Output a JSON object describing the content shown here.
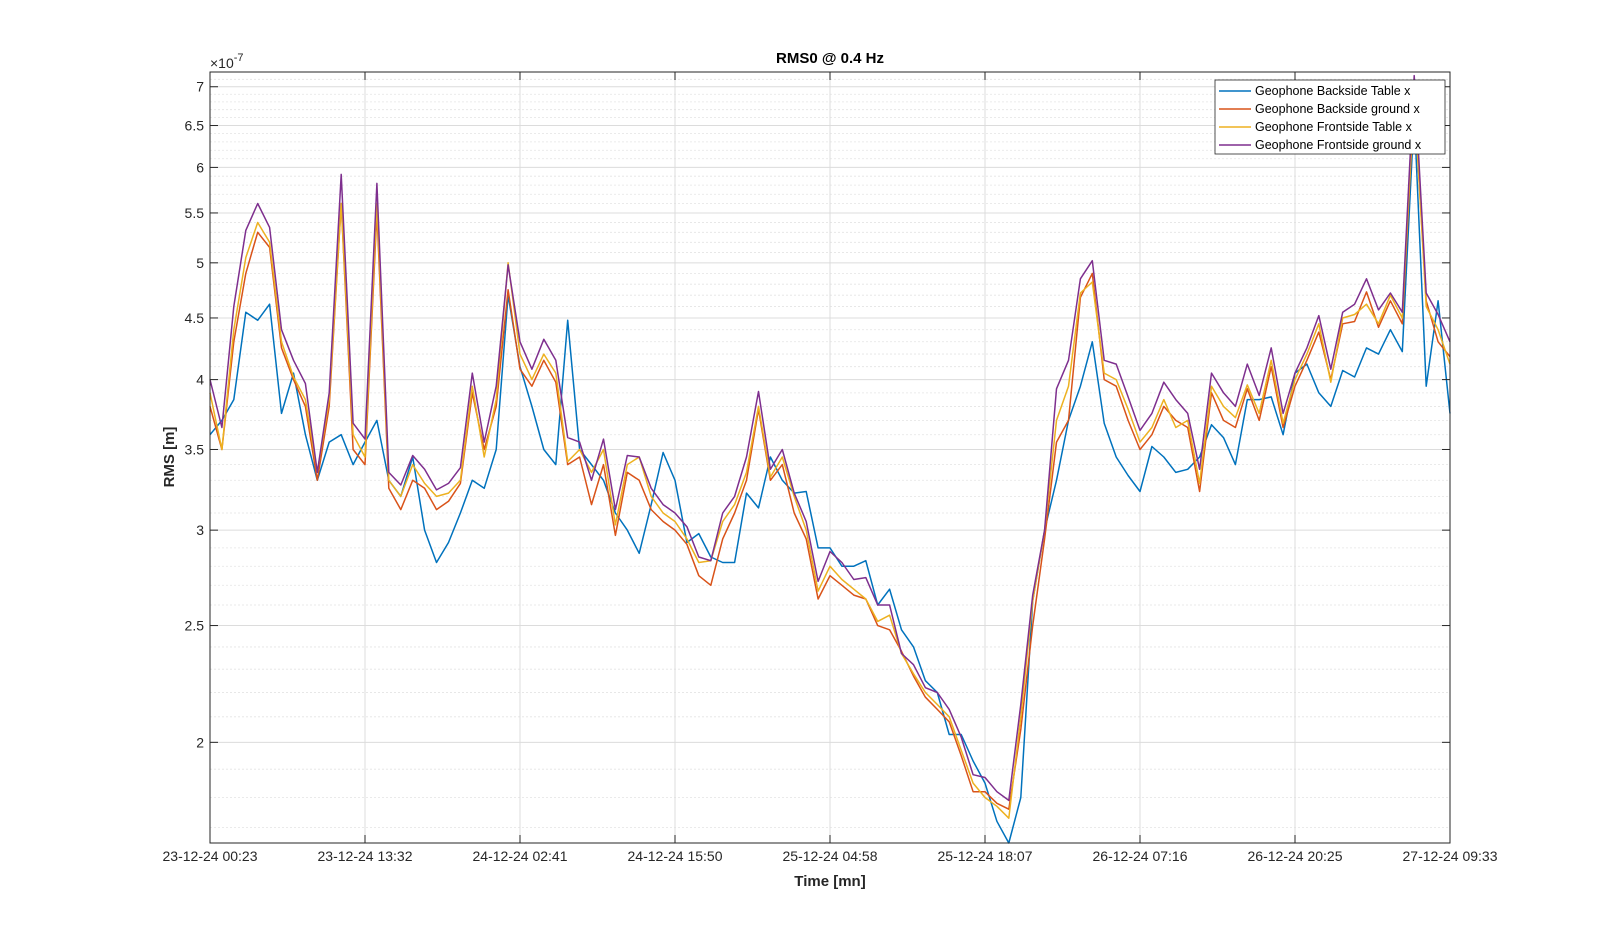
{
  "chart_data": {
    "type": "line",
    "title": "RMS0 @ 0.4 Hz",
    "xlabel": "Time [mn]",
    "ylabel": "RMS [m]",
    "y_scale": "log",
    "y_exponent_label": "×10",
    "y_exponent_power": "-7",
    "ylim": [
      1.65,
      7.2
    ],
    "y_ticks": [
      2,
      2.5,
      3,
      3.5,
      4,
      4.5,
      5,
      5.5,
      6,
      6.5,
      7
    ],
    "y_tick_labels": [
      "2",
      "2.5",
      "3",
      "3.5",
      "4",
      "4.5",
      "5",
      "5.5",
      "6",
      "6.5",
      "7"
    ],
    "x_tick_labels": [
      "23-12-24 00:23",
      "23-12-24 13:32",
      "24-12-24 02:41",
      "24-12-24 15:50",
      "25-12-24 04:58",
      "25-12-24 18:07",
      "26-12-24 07:16",
      "26-12-24 20:25",
      "27-12-24 09:33"
    ],
    "grid": true,
    "minor_grid": true,
    "legend_position": "top-right",
    "series": [
      {
        "name": "Geophone Backside Table x",
        "color": "#0072BD",
        "values": [
          3.6,
          3.7,
          3.85,
          4.55,
          4.48,
          4.62,
          3.75,
          4.05,
          3.6,
          3.3,
          3.55,
          3.6,
          3.4,
          3.55,
          3.7,
          3.3,
          3.2,
          3.45,
          3.0,
          2.82,
          2.93,
          3.1,
          3.3,
          3.25,
          3.5,
          4.7,
          4.1,
          3.8,
          3.5,
          3.4,
          4.48,
          3.5,
          3.4,
          3.3,
          3.1,
          3.0,
          2.87,
          3.15,
          3.48,
          3.3,
          2.93,
          2.98,
          2.85,
          2.82,
          2.82,
          3.22,
          3.13,
          3.45,
          3.3,
          3.22,
          3.23,
          2.9,
          2.9,
          2.8,
          2.8,
          2.83,
          2.6,
          2.68,
          2.48,
          2.4,
          2.25,
          2.2,
          2.03,
          2.03,
          1.93,
          1.85,
          1.72,
          1.65,
          1.8,
          2.62,
          3.0,
          3.3,
          3.7,
          3.95,
          4.3,
          3.68,
          3.45,
          3.33,
          3.23,
          3.52,
          3.45,
          3.35,
          3.37,
          3.45,
          3.67,
          3.58,
          3.4,
          3.85,
          3.85,
          3.87,
          3.6,
          4.05,
          4.12,
          3.9,
          3.8,
          4.07,
          4.02,
          4.25,
          4.2,
          4.4,
          4.22,
          6.65,
          3.95,
          4.65,
          3.75
        ]
      },
      {
        "name": "Geophone Backside ground x",
        "color": "#D95319",
        "values": [
          3.8,
          3.5,
          4.3,
          4.9,
          5.3,
          5.15,
          4.25,
          4.0,
          3.8,
          3.3,
          3.8,
          5.6,
          3.5,
          3.4,
          5.5,
          3.25,
          3.12,
          3.3,
          3.25,
          3.12,
          3.17,
          3.28,
          3.9,
          3.5,
          3.8,
          4.75,
          4.08,
          3.95,
          4.15,
          3.98,
          3.4,
          3.45,
          3.15,
          3.4,
          2.97,
          3.35,
          3.3,
          3.12,
          3.05,
          3.0,
          2.92,
          2.75,
          2.7,
          2.95,
          3.1,
          3.3,
          3.78,
          3.3,
          3.4,
          3.1,
          2.95,
          2.63,
          2.75,
          2.7,
          2.65,
          2.63,
          2.5,
          2.48,
          2.38,
          2.27,
          2.18,
          2.13,
          2.08,
          1.95,
          1.82,
          1.82,
          1.78,
          1.76,
          2.05,
          2.5,
          2.95,
          3.55,
          3.7,
          4.68,
          4.9,
          4.0,
          3.95,
          3.7,
          3.5,
          3.6,
          3.8,
          3.7,
          3.65,
          3.23,
          3.9,
          3.7,
          3.65,
          3.93,
          3.7,
          4.1,
          3.65,
          3.95,
          4.15,
          4.38,
          4.0,
          4.45,
          4.47,
          4.73,
          4.42,
          4.65,
          4.45,
          6.85,
          4.65,
          4.3,
          4.18
        ]
      },
      {
        "name": "Geophone Frontside Table x",
        "color": "#EDB120",
        "values": [
          3.9,
          3.5,
          4.4,
          5.05,
          5.4,
          5.2,
          4.3,
          4.02,
          3.85,
          3.35,
          3.85,
          5.6,
          3.6,
          3.45,
          5.6,
          3.3,
          3.2,
          3.4,
          3.28,
          3.2,
          3.22,
          3.3,
          3.95,
          3.45,
          3.85,
          5.0,
          4.2,
          4.0,
          4.2,
          4.05,
          3.42,
          3.5,
          3.35,
          3.5,
          3.03,
          3.4,
          3.45,
          3.2,
          3.1,
          3.05,
          2.95,
          2.82,
          2.83,
          3.05,
          3.15,
          3.35,
          3.8,
          3.32,
          3.45,
          3.2,
          3.0,
          2.67,
          2.8,
          2.73,
          2.68,
          2.63,
          2.52,
          2.55,
          2.37,
          2.28,
          2.2,
          2.15,
          2.1,
          1.97,
          1.85,
          1.8,
          1.77,
          1.73,
          2.1,
          2.62,
          3.0,
          3.7,
          3.95,
          4.72,
          4.82,
          4.05,
          4.0,
          3.78,
          3.55,
          3.65,
          3.85,
          3.65,
          3.7,
          3.28,
          3.95,
          3.8,
          3.72,
          3.96,
          3.75,
          4.15,
          3.68,
          4.0,
          4.2,
          4.45,
          3.98,
          4.5,
          4.53,
          4.62,
          4.45,
          4.7,
          4.5,
          6.9,
          4.6,
          4.4,
          4.12
        ]
      },
      {
        "name": "Geophone Frontside ground x",
        "color": "#7E2F8E",
        "values": [
          4.0,
          3.65,
          4.6,
          5.32,
          5.6,
          5.35,
          4.4,
          4.15,
          3.97,
          3.35,
          3.9,
          5.92,
          3.68,
          3.57,
          5.82,
          3.35,
          3.27,
          3.46,
          3.37,
          3.24,
          3.28,
          3.38,
          4.05,
          3.55,
          3.95,
          4.98,
          4.3,
          4.08,
          4.32,
          4.15,
          3.58,
          3.55,
          3.3,
          3.57,
          3.12,
          3.46,
          3.45,
          3.25,
          3.15,
          3.1,
          3.02,
          2.85,
          2.83,
          3.1,
          3.2,
          3.45,
          3.91,
          3.37,
          3.5,
          3.22,
          3.05,
          2.72,
          2.88,
          2.82,
          2.73,
          2.74,
          2.6,
          2.6,
          2.37,
          2.32,
          2.22,
          2.2,
          2.13,
          2.02,
          1.88,
          1.87,
          1.82,
          1.79,
          2.15,
          2.65,
          3.0,
          3.93,
          4.15,
          4.85,
          5.02,
          4.15,
          4.12,
          3.87,
          3.63,
          3.75,
          3.98,
          3.85,
          3.75,
          3.37,
          4.05,
          3.9,
          3.8,
          4.12,
          3.88,
          4.25,
          3.75,
          4.05,
          4.25,
          4.52,
          4.08,
          4.55,
          4.62,
          4.85,
          4.57,
          4.72,
          4.55,
          7.15,
          4.72,
          4.53,
          4.3
        ]
      }
    ]
  }
}
